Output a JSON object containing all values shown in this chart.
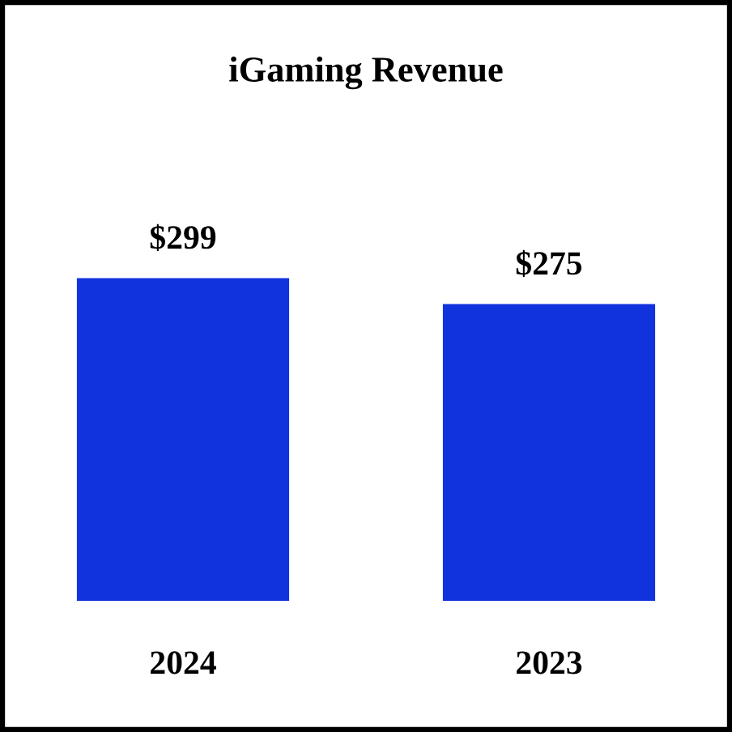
{
  "chart_data": {
    "type": "bar",
    "title": "iGaming Revenue",
    "categories": [
      "2024",
      "2023"
    ],
    "values": [
      299,
      275
    ],
    "color": "#1133dd",
    "value_labels": [
      "$299",
      "$275"
    ],
    "grid": false
  }
}
